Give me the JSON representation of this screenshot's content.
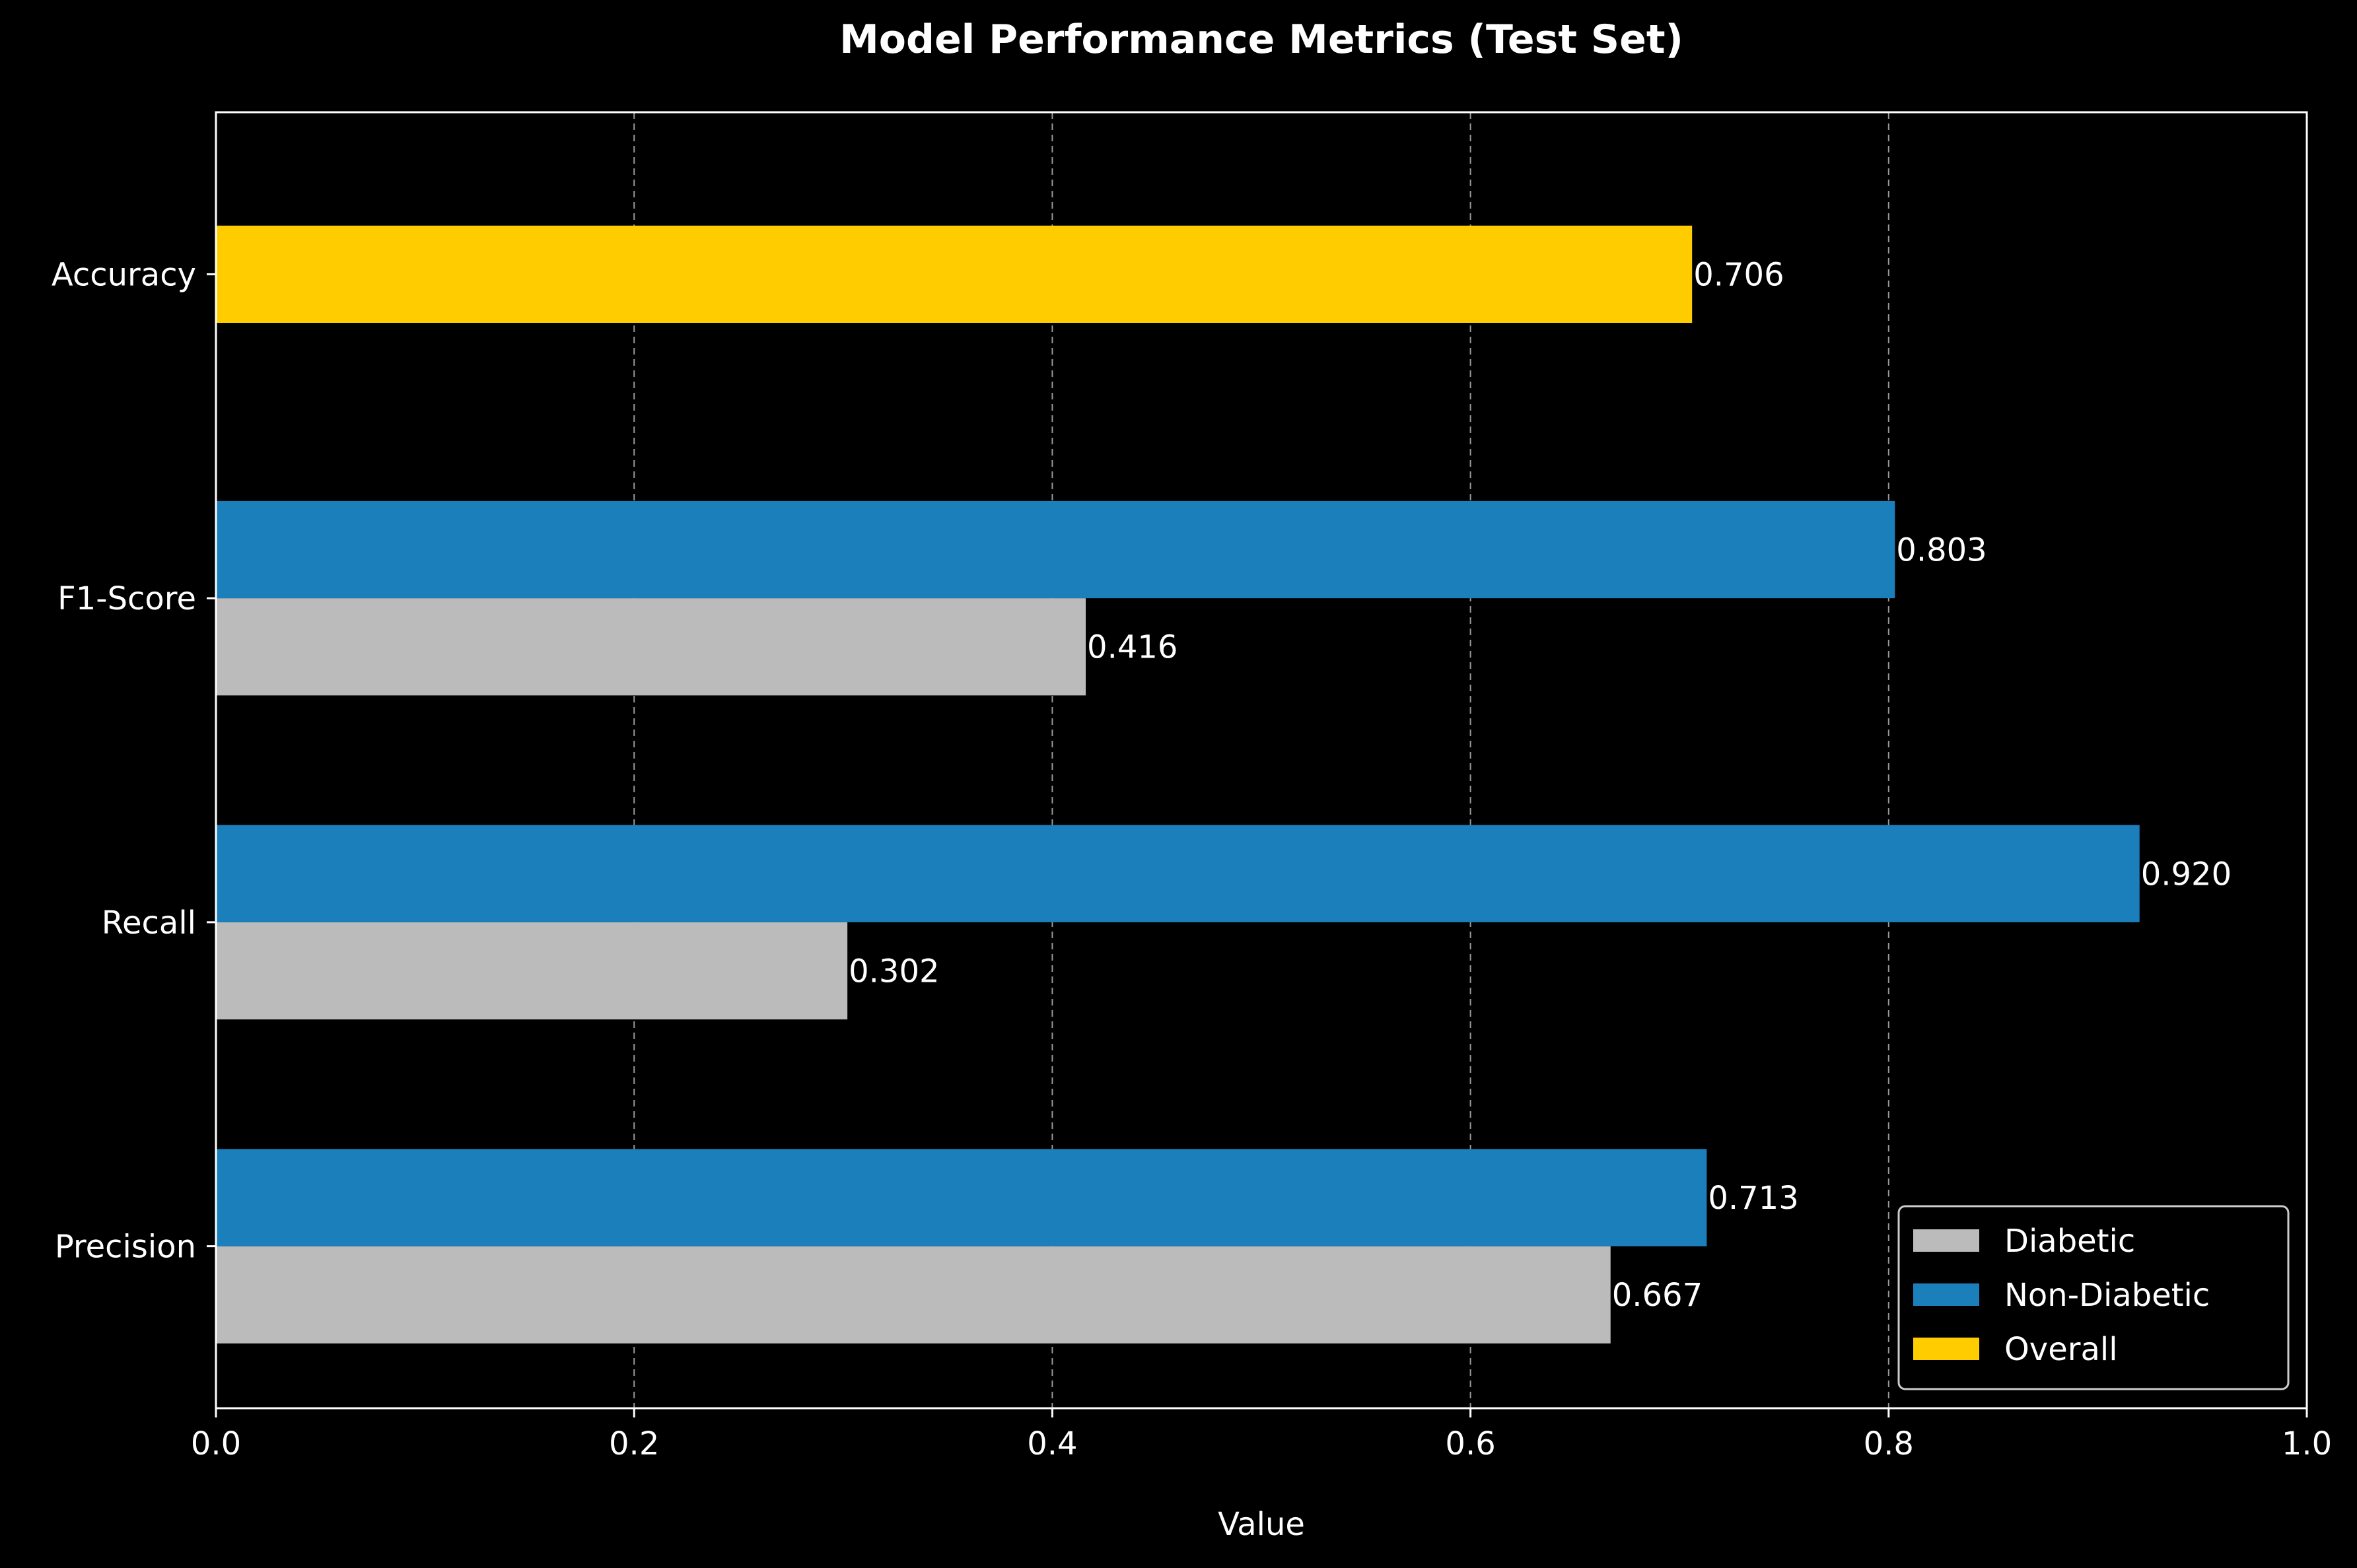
{
  "chart_data": {
    "type": "bar",
    "orientation": "horizontal",
    "title": "Model Performance Metrics (Test Set)",
    "xlabel": "Value",
    "ylabel": "",
    "xlim": [
      0.0,
      1.0
    ],
    "x_ticks": [
      "0.0",
      "0.2",
      "0.4",
      "0.6",
      "0.8",
      "1.0"
    ],
    "categories": [
      "Precision",
      "Recall",
      "F1-Score",
      "Accuracy"
    ],
    "grid": "vertical dashed",
    "legend_position": "bottom-right",
    "series": [
      {
        "name": "Diabetic",
        "color": "#bbbbbb",
        "values": [
          0.667,
          0.302,
          0.416,
          null
        ],
        "labels": [
          "0.667",
          "0.302",
          "0.416",
          ""
        ]
      },
      {
        "name": "Non-Diabetic",
        "color": "#1b7fbc",
        "values": [
          0.713,
          0.92,
          0.803,
          null
        ],
        "labels": [
          "0.713",
          "0.920",
          "0.803",
          ""
        ]
      },
      {
        "name": "Overall",
        "color": "#ffcc00",
        "values": [
          null,
          null,
          null,
          0.706
        ],
        "labels": [
          "",
          "",
          "",
          "0.706"
        ]
      }
    ]
  }
}
